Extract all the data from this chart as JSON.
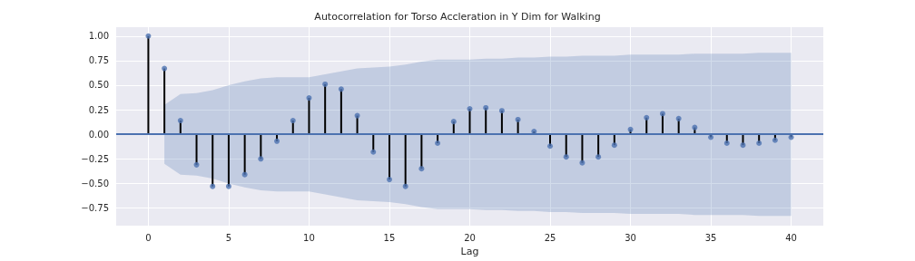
{
  "chart_data": {
    "type": "lollipop",
    "title": "Autocorrelation for Torso Accleration in Y Dim for Walking",
    "xlabel": "Lag",
    "x": [
      0,
      1,
      2,
      3,
      4,
      5,
      6,
      7,
      8,
      9,
      10,
      11,
      12,
      13,
      14,
      15,
      16,
      17,
      18,
      19,
      20,
      21,
      22,
      23,
      24,
      25,
      26,
      27,
      28,
      29,
      30,
      31,
      32,
      33,
      34,
      35,
      36,
      37,
      38,
      39,
      40
    ],
    "series": [
      {
        "color": "#4c72b0",
        "values": [
          1.0,
          0.67,
          0.14,
          -0.31,
          -0.53,
          -0.53,
          -0.41,
          -0.25,
          -0.07,
          0.14,
          0.37,
          0.51,
          0.46,
          0.19,
          -0.18,
          -0.46,
          -0.53,
          -0.35,
          -0.09,
          0.13,
          0.26,
          0.27,
          0.24,
          0.15,
          0.03,
          -0.12,
          -0.23,
          -0.29,
          -0.23,
          -0.11,
          0.05,
          0.17,
          0.21,
          0.16,
          0.07,
          -0.03,
          -0.09,
          -0.11,
          -0.09,
          -0.06,
          -0.03
        ],
        "upper": [
          null,
          0.3,
          0.41,
          0.42,
          0.45,
          0.5,
          0.54,
          0.57,
          0.58,
          0.58,
          0.58,
          0.61,
          0.64,
          0.67,
          0.68,
          0.69,
          0.71,
          0.74,
          0.76,
          0.76,
          0.76,
          0.77,
          0.77,
          0.78,
          0.78,
          0.79,
          0.79,
          0.8,
          0.8,
          0.8,
          0.81,
          0.81,
          0.81,
          0.81,
          0.82,
          0.82,
          0.82,
          0.82,
          0.83,
          0.83,
          0.83
        ],
        "lower": [
          null,
          -0.3,
          -0.41,
          -0.42,
          -0.45,
          -0.5,
          -0.54,
          -0.57,
          -0.58,
          -0.58,
          -0.58,
          -0.61,
          -0.64,
          -0.67,
          -0.68,
          -0.69,
          -0.71,
          -0.74,
          -0.76,
          -0.76,
          -0.76,
          -0.77,
          -0.77,
          -0.78,
          -0.78,
          -0.79,
          -0.79,
          -0.8,
          -0.8,
          -0.8,
          -0.81,
          -0.81,
          -0.81,
          -0.81,
          -0.82,
          -0.82,
          -0.82,
          -0.82,
          -0.83,
          -0.83,
          -0.83
        ]
      }
    ],
    "xlim": [
      -2,
      42
    ],
    "xticks": [
      0,
      5,
      10,
      15,
      20,
      25,
      30,
      35,
      40
    ],
    "ylim": [
      -0.93,
      1.09
    ],
    "yticks": [
      {
        "value": -0.75,
        "label": "−0.75"
      },
      {
        "value": -0.5,
        "label": "−0.50"
      },
      {
        "value": -0.25,
        "label": "−0.25"
      },
      {
        "value": 0,
        "label": "0.00"
      },
      {
        "value": 0.25,
        "label": "0.25"
      },
      {
        "value": 0.5,
        "label": "0.50"
      },
      {
        "value": 0.75,
        "label": "0.75"
      },
      {
        "value": 1,
        "label": "1.00"
      }
    ],
    "ref_lines": [
      {
        "axis": "y",
        "value": 0,
        "label": null,
        "color": "#4c72b0"
      }
    ],
    "grid": true,
    "marker": "circle"
  }
}
